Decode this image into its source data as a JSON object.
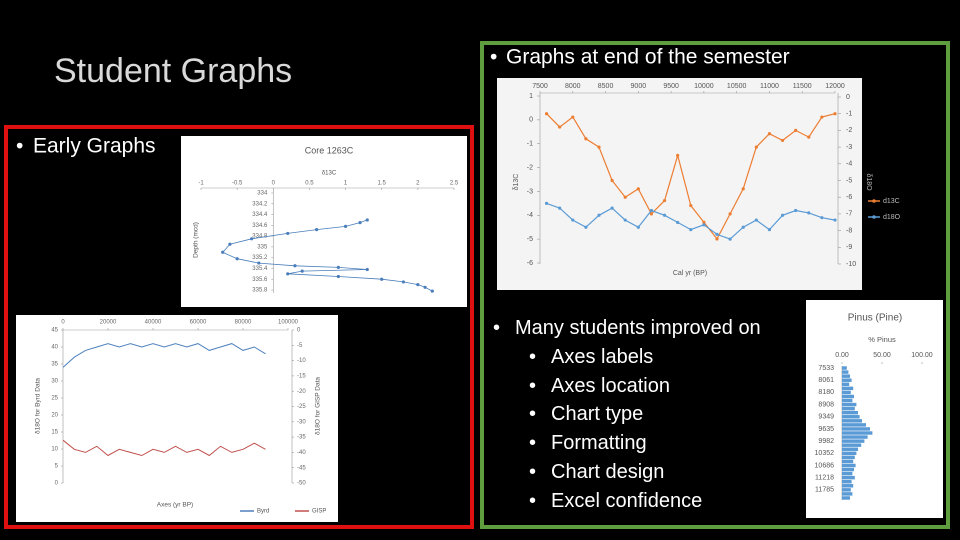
{
  "title": "Student Graphs",
  "early": {
    "heading": "Early Graphs",
    "core_chart": {
      "type": "scatter",
      "title": "Core 1263C",
      "x_label": "δ13C",
      "y_label": "Depth (mcd)",
      "xlim": [
        -1,
        2.5
      ],
      "xticks": [
        -1,
        -0.5,
        0,
        0.5,
        1,
        1.5,
        2,
        2.5
      ],
      "ylim": [
        334,
        335.8
      ],
      "yticks": [
        334,
        334.2,
        334.4,
        334.6,
        334.8,
        335,
        335.2,
        335.4,
        335.6,
        335.8
      ],
      "color": "#4a7ebb",
      "x": [
        1.3,
        1.2,
        1.0,
        0.6,
        0.2,
        -0.3,
        -0.6,
        -0.7,
        -0.5,
        -0.2,
        0.3,
        0.9,
        1.3,
        0.4,
        0.2,
        0.9,
        1.5,
        1.8,
        2.0,
        2.1,
        2.2
      ],
      "values": [
        334.5,
        334.55,
        334.62,
        334.68,
        334.75,
        334.85,
        334.95,
        335.1,
        335.22,
        335.3,
        335.35,
        335.38,
        335.42,
        335.45,
        335.5,
        335.55,
        335.6,
        335.65,
        335.7,
        335.75,
        335.82
      ]
    },
    "ice_chart": {
      "type": "line",
      "x_label": "Axes (yr BP)",
      "y_label": "δ18O for Byrd Data",
      "y2_label": "δ18O for GISP Data",
      "xlim": [
        0,
        100000
      ],
      "xticks": [
        0,
        20000,
        40000,
        60000,
        80000,
        100000
      ],
      "ylim": [
        0,
        45
      ],
      "yticks": [
        0,
        5,
        10,
        15,
        20,
        25,
        30,
        35,
        40,
        45
      ],
      "y2lim": [
        -50,
        0
      ],
      "y2ticks": [
        0,
        -5,
        -10,
        -15,
        -20,
        -25,
        -30,
        -35,
        -40,
        -45,
        -50
      ],
      "x": [
        0,
        5000,
        10000,
        15000,
        20000,
        25000,
        30000,
        35000,
        40000,
        45000,
        50000,
        55000,
        60000,
        65000,
        70000,
        75000,
        80000,
        85000,
        90000
      ],
      "series": [
        {
          "name": "Byrd",
          "color": "#4f81bd",
          "values": [
            34,
            37,
            39,
            40,
            41,
            40,
            41,
            40,
            41,
            40,
            41,
            40,
            41,
            39,
            40,
            41,
            39,
            40,
            38
          ]
        },
        {
          "name": "GISP",
          "color": "#c0504d",
          "axis": "y2",
          "values": [
            -36,
            -39,
            -40,
            -38,
            -41,
            -39,
            -40,
            -41,
            -39,
            -40,
            -38,
            -40,
            -39,
            -41,
            -38,
            -40,
            -39,
            -37,
            -39
          ]
        }
      ]
    }
  },
  "final": {
    "heading": "Graphs at end of the semester",
    "isotope_chart": {
      "type": "line",
      "x_label": "Cal yr (BP)",
      "y_label": "δ13C",
      "y2_label": "δ18O",
      "xlim": [
        7500,
        12000
      ],
      "xticks": [
        7500,
        8000,
        8500,
        9000,
        9500,
        10000,
        10500,
        11000,
        11500,
        12000
      ],
      "ylim": [
        -6,
        1
      ],
      "yticks": [
        1,
        0,
        -1,
        -2,
        -3,
        -4,
        -5,
        -6
      ],
      "y2lim": [
        -10,
        0
      ],
      "y2ticks": [
        0,
        -1,
        -2,
        -3,
        -4,
        -5,
        -6,
        -7,
        -8,
        -9,
        -10
      ],
      "x": [
        7600,
        7800,
        8000,
        8200,
        8400,
        8600,
        8800,
        9000,
        9200,
        9400,
        9600,
        9800,
        10000,
        10200,
        10400,
        10600,
        10800,
        11000,
        11200,
        11400,
        11600,
        11800,
        12000
      ],
      "series": [
        {
          "name": "d13C",
          "color": "#ed7d31",
          "axis": "y2",
          "values": [
            -1,
            -1.8,
            -1.2,
            -2.5,
            -3,
            -5,
            -6,
            -5.5,
            -7,
            -6.2,
            -3.5,
            -6.5,
            -7.5,
            -8.5,
            -7,
            -5.5,
            -3,
            -2.2,
            -2.6,
            -2,
            -2.4,
            -1.2,
            -1
          ]
        },
        {
          "name": "d18O",
          "color": "#5b9bd5",
          "values": [
            -3.5,
            -3.7,
            -4.2,
            -4.5,
            -4,
            -3.7,
            -4.2,
            -4.5,
            -3.8,
            -4,
            -4.3,
            -4.6,
            -4.4,
            -4.8,
            -5,
            -4.5,
            -4.2,
            -4.6,
            -4,
            -3.8,
            -3.9,
            -4.1,
            -4.2
          ]
        }
      ]
    },
    "pinus_chart": {
      "type": "bar",
      "title": "Pinus (Pine)",
      "x_label": "% Pinus",
      "xlim": [
        0,
        100
      ],
      "xticks": [
        {
          "value": 0,
          "label": "0.00"
        },
        {
          "value": 50,
          "label": "50.00"
        },
        {
          "value": 100,
          "label": "100.00"
        }
      ],
      "color": "#5b9bd5",
      "categories": [
        "7533",
        null,
        null,
        "8061",
        null,
        null,
        "8180",
        null,
        null,
        "8908",
        null,
        null,
        "9349",
        null,
        null,
        "9635",
        null,
        null,
        "9982",
        null,
        null,
        "10352",
        null,
        null,
        "10686",
        null,
        null,
        "11218",
        null,
        null,
        "11785",
        null,
        null
      ],
      "values": [
        6,
        8,
        10,
        12,
        9,
        14,
        11,
        15,
        13,
        18,
        16,
        20,
        22,
        25,
        30,
        35,
        38,
        32,
        28,
        24,
        20,
        18,
        16,
        14,
        17,
        15,
        13,
        16,
        12,
        14,
        11,
        13,
        10
      ]
    },
    "list": {
      "heading": "Many students improved on",
      "items": [
        "Axes labels",
        "Axes location",
        "Chart type",
        "Formatting",
        "Chart design",
        "Excel confidence"
      ]
    }
  }
}
